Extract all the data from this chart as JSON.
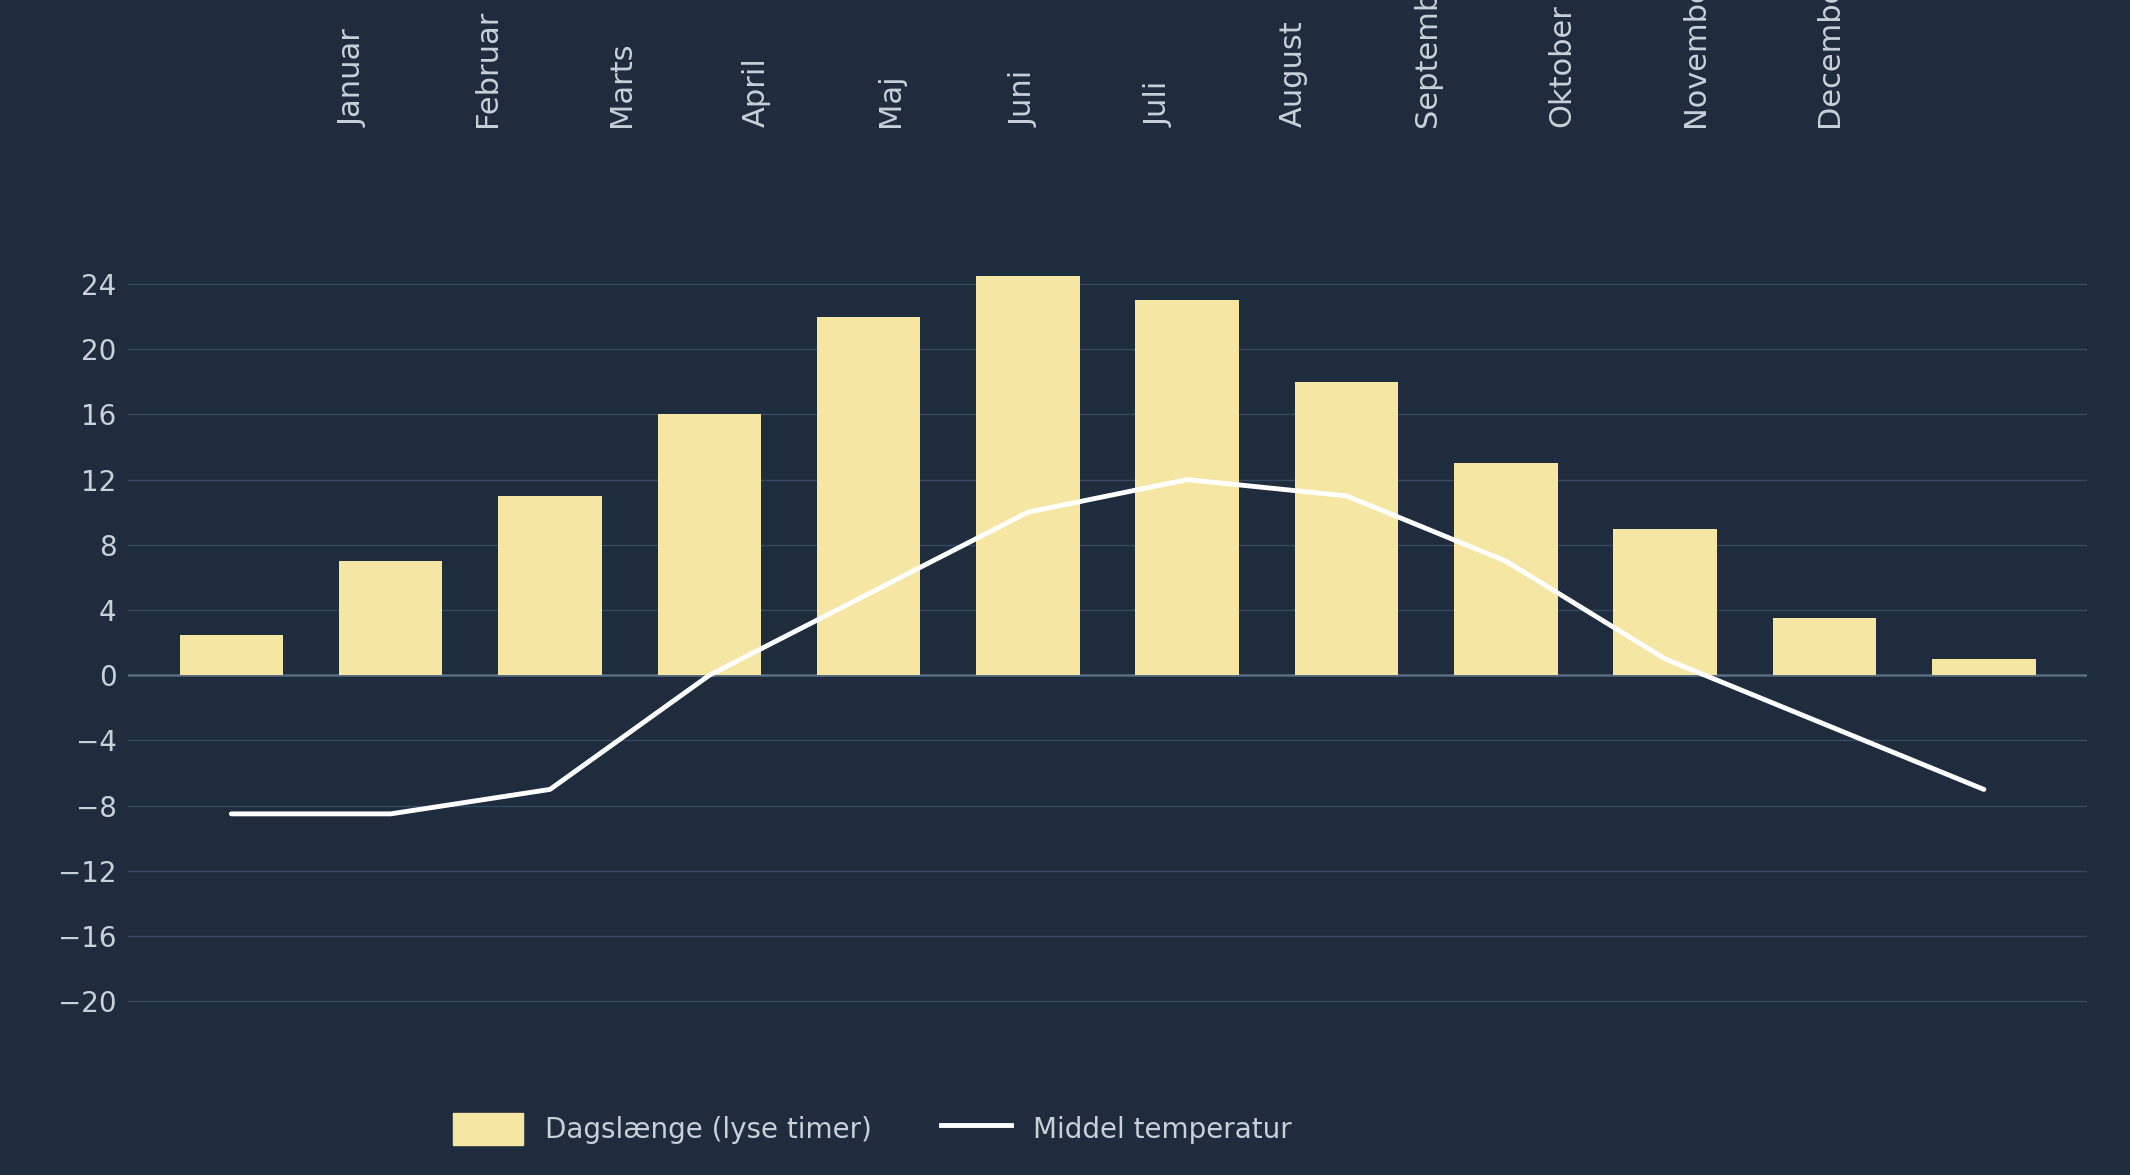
{
  "months": [
    "Januar",
    "Februar",
    "Marts",
    "April",
    "Maj",
    "Juni",
    "Juli",
    "August",
    "September",
    "Oktober",
    "November",
    "December"
  ],
  "dagslengde": [
    2.5,
    7,
    11,
    16,
    22,
    24.5,
    23,
    18,
    13,
    9,
    3.5,
    1
  ],
  "temperatur": [
    -8.5,
    -8.5,
    -7,
    0,
    5,
    10,
    12,
    11,
    7,
    1,
    -3,
    -7
  ],
  "bar_color": "#f5e6a3",
  "line_color": "#ffffff",
  "background_color": "#1e2c3d",
  "grid_color": "#344a60",
  "zero_line_color": "#5a6e82",
  "tick_color": "#c8d0d8",
  "legend_label_bar": "Dagslænge (lyse timer)",
  "legend_label_line": "Middel temperatur",
  "ylim": [
    -22,
    27
  ],
  "yticks": [
    -20,
    -16,
    -12,
    -8,
    -4,
    0,
    4,
    8,
    12,
    16,
    20,
    24
  ],
  "tick_fontsize": 20,
  "month_fontsize": 22,
  "legend_fontsize": 20
}
